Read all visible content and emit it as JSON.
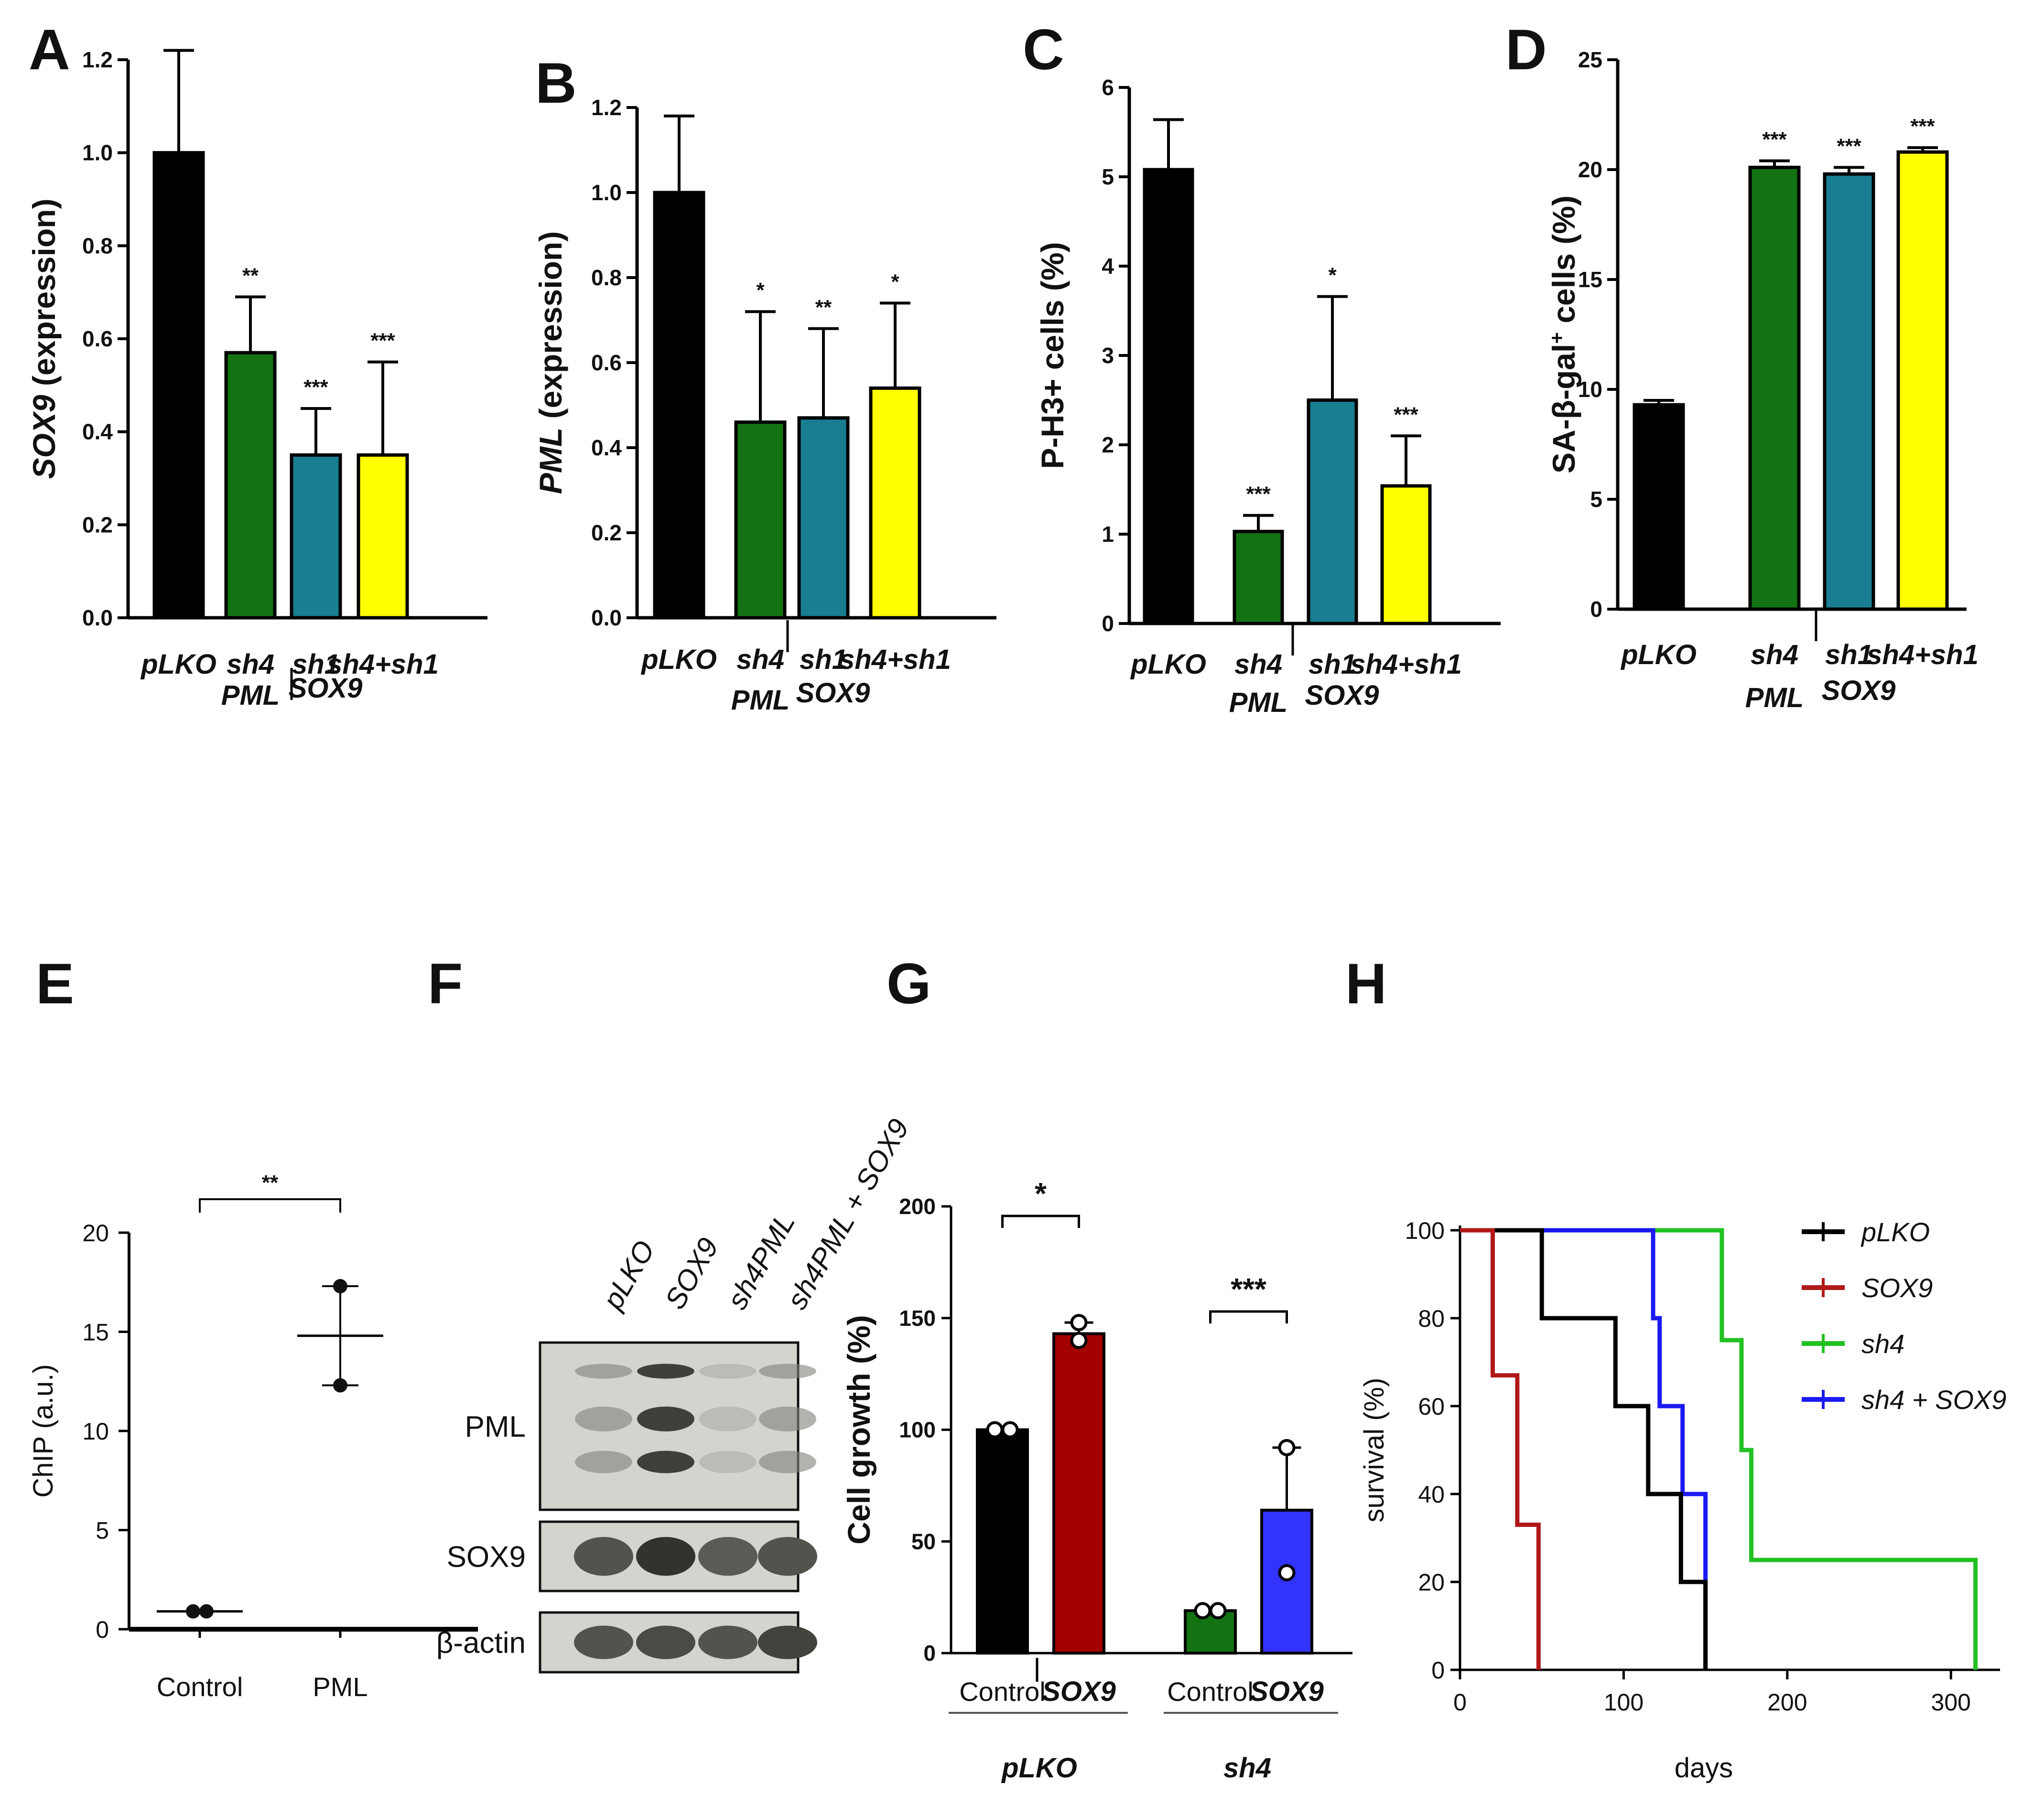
{
  "colors": {
    "black": "#000000",
    "green": "#137313",
    "teal": "#197E92",
    "yellow": "#FFFF00",
    "darkred": "#A30000",
    "blue": "#3333FF",
    "kmgreen": "#22C122",
    "kmblue": "#1A1AF2",
    "kmred": "#B01818"
  },
  "chart_data": [
    {
      "id": "A",
      "type": "bar",
      "panel_label": "A",
      "ylabel_italic": "SOX9",
      "ylabel_rest": " (expression)",
      "ylim": [
        0,
        1.2
      ],
      "yticks": [
        "0.0",
        "0.2",
        "0.4",
        "0.6",
        "0.8",
        "1.0",
        "1.2"
      ],
      "categories": [
        "pLKO",
        "sh4",
        "sh1",
        "sh4+sh1"
      ],
      "sublabels": [
        "PML",
        "SOX9"
      ],
      "values": [
        1.0,
        0.57,
        0.35,
        0.35
      ],
      "errors": [
        0.22,
        0.12,
        0.1,
        0.2
      ],
      "significance": [
        "",
        "**",
        "***",
        "***"
      ],
      "bar_colors": [
        "black",
        "green",
        "teal",
        "yellow"
      ]
    },
    {
      "id": "B",
      "type": "bar",
      "panel_label": "B",
      "ylabel_italic": "PML",
      "ylabel_rest": " (expression)",
      "ylim": [
        0,
        1.2
      ],
      "yticks": [
        "0.0",
        "0.2",
        "0.4",
        "0.6",
        "0.8",
        "1.0",
        "1.2"
      ],
      "categories": [
        "pLKO",
        "sh4",
        "sh1",
        "sh4+sh1"
      ],
      "sublabels": [
        "PML",
        "SOX9"
      ],
      "values": [
        1.0,
        0.46,
        0.47,
        0.54
      ],
      "errors": [
        0.18,
        0.26,
        0.21,
        0.2
      ],
      "significance": [
        "",
        "*",
        "**",
        "*"
      ],
      "bar_colors": [
        "black",
        "green",
        "teal",
        "yellow"
      ]
    },
    {
      "id": "C",
      "type": "bar",
      "panel_label": "C",
      "ylabel_italic": "",
      "ylabel_rest": "P-H3+ cells (%)",
      "ylim": [
        0,
        6
      ],
      "yticks": [
        "0",
        "1",
        "2",
        "3",
        "4",
        "5",
        "6"
      ],
      "categories": [
        "pLKO",
        "sh4",
        "sh1",
        "sh4+sh1"
      ],
      "sublabels": [
        "PML",
        "SOX9"
      ],
      "values": [
        5.08,
        1.03,
        2.5,
        1.54
      ],
      "errors": [
        0.56,
        0.18,
        1.16,
        0.56
      ],
      "significance": [
        "",
        "***",
        "*",
        "***"
      ],
      "bar_colors": [
        "black",
        "green",
        "teal",
        "yellow"
      ]
    },
    {
      "id": "D",
      "type": "bar",
      "panel_label": "D",
      "ylabel_italic": "",
      "ylabel_rest": "SA-β-gal",
      "ylabel_sup": "+",
      "ylabel_tail": " cells (%)",
      "ylim": [
        0,
        25
      ],
      "yticks": [
        "0",
        "5",
        "10",
        "15",
        "20",
        "25"
      ],
      "categories": [
        "pLKO",
        "sh4",
        "sh1",
        "sh4+sh1"
      ],
      "sublabels": [
        "PML",
        "SOX9"
      ],
      "values": [
        9.3,
        20.1,
        19.8,
        20.8
      ],
      "errors": [
        0.2,
        0.3,
        0.3,
        0.2
      ],
      "significance": [
        "",
        "***",
        "***",
        "***"
      ],
      "bar_colors": [
        "black",
        "green",
        "teal",
        "yellow"
      ]
    },
    {
      "id": "E",
      "type": "scatter",
      "panel_label": "E",
      "ylabel": "ChIP (a.u.)",
      "ylim": [
        0,
        20
      ],
      "yticks": [
        "0",
        "5",
        "10",
        "15",
        "20"
      ],
      "categories": [
        "Control",
        "PML"
      ],
      "points": [
        [
          0.9,
          0.9
        ],
        [
          17.3,
          12.3
        ]
      ],
      "means": [
        0.9,
        14.8
      ],
      "sd": [
        0.05,
        2.5
      ],
      "significance": "**"
    },
    {
      "id": "G",
      "type": "bar",
      "panel_label": "G",
      "ylabel": "Cell growth (%)",
      "ylim": [
        0,
        200
      ],
      "yticks": [
        "0",
        "50",
        "100",
        "150",
        "200"
      ],
      "categories": [
        "Control",
        "SOX9",
        "Control",
        "SOX9"
      ],
      "groups": [
        "pLKO",
        "sh4"
      ],
      "values": [
        100,
        143,
        19,
        64
      ],
      "errors": [
        0,
        5,
        0,
        28
      ],
      "points": [
        [
          100,
          100
        ],
        [
          148,
          140
        ],
        [
          19,
          19
        ],
        [
          92,
          36
        ]
      ],
      "significance": [
        "*",
        "***"
      ],
      "bar_colors": [
        "black",
        "darkred",
        "green",
        "blue"
      ]
    },
    {
      "id": "H",
      "type": "line",
      "panel_label": "H",
      "ylabel": "survival (%)",
      "xlabel": "days",
      "xlim": [
        0,
        330
      ],
      "ylim": [
        0,
        100
      ],
      "xticks": [
        "0",
        "100",
        "200",
        "300"
      ],
      "yticks": [
        "0",
        "20",
        "40",
        "60",
        "80",
        "100"
      ],
      "series": [
        {
          "name": "pLKO",
          "color": "black",
          "steps": [
            [
              0,
              100
            ],
            [
              50,
              100
            ],
            [
              50,
              80
            ],
            [
              95,
              80
            ],
            [
              95,
              60
            ],
            [
              115,
              60
            ],
            [
              115,
              40
            ],
            [
              135,
              40
            ],
            [
              135,
              20
            ],
            [
              150,
              20
            ],
            [
              150,
              0
            ]
          ]
        },
        {
          "name": "SOX9",
          "color": "kmred",
          "steps": [
            [
              0,
              100
            ],
            [
              20,
              100
            ],
            [
              20,
              67
            ],
            [
              35,
              67
            ],
            [
              35,
              33
            ],
            [
              48,
              33
            ],
            [
              48,
              0
            ]
          ]
        },
        {
          "name": "sh4",
          "color": "kmgreen",
          "steps": [
            [
              0,
              100
            ],
            [
              160,
              100
            ],
            [
              160,
              75
            ],
            [
              172,
              75
            ],
            [
              172,
              50
            ],
            [
              178,
              50
            ],
            [
              178,
              25
            ],
            [
              315,
              25
            ],
            [
              315,
              0
            ]
          ]
        },
        {
          "name": "sh4 + SOX9",
          "color": "kmblue",
          "steps": [
            [
              0,
              100
            ],
            [
              118,
              100
            ],
            [
              118,
              80
            ],
            [
              122,
              80
            ],
            [
              122,
              60
            ],
            [
              136,
              60
            ],
            [
              136,
              40
            ],
            [
              150,
              40
            ],
            [
              150,
              0
            ]
          ]
        }
      ]
    }
  ],
  "blot": {
    "panel_label": "F",
    "lanes": [
      "pLKO",
      "SOX9",
      "sh4PML",
      "sh4PML + SOX9"
    ],
    "rows": [
      {
        "label": "PML",
        "intensity": [
          0.45,
          0.95,
          0.25,
          0.45
        ]
      },
      {
        "label": "SOX9",
        "intensity": [
          0.75,
          0.95,
          0.7,
          0.75
        ]
      },
      {
        "label": "β-actin",
        "intensity": [
          0.75,
          0.8,
          0.75,
          0.85
        ]
      }
    ]
  }
}
